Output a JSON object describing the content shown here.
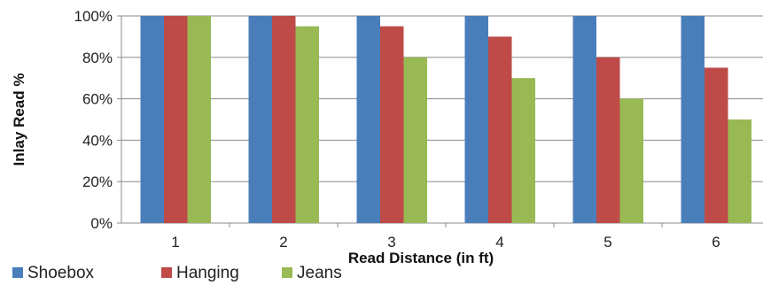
{
  "chart_data": {
    "type": "bar",
    "categories": [
      "1",
      "2",
      "3",
      "4",
      "5",
      "6"
    ],
    "series": [
      {
        "name": "Shoebox",
        "values": [
          100,
          100,
          100,
          100,
          100,
          100
        ],
        "color": "#4a7ebb"
      },
      {
        "name": "Hanging",
        "values": [
          100,
          100,
          95,
          90,
          80,
          75
        ],
        "color": "#be4b48"
      },
      {
        "name": "Jeans",
        "values": [
          100,
          95,
          80,
          70,
          60,
          50
        ],
        "color": "#98b954"
      }
    ],
    "xlabel": "Read Distance (in ft)",
    "ylabel": "Inlay Read %",
    "ylim": [
      0,
      100
    ],
    "yticks": [
      "0%",
      "20%",
      "40%",
      "60%",
      "80%",
      "100%"
    ],
    "grid": true,
    "legend_position": "bottom-left"
  }
}
